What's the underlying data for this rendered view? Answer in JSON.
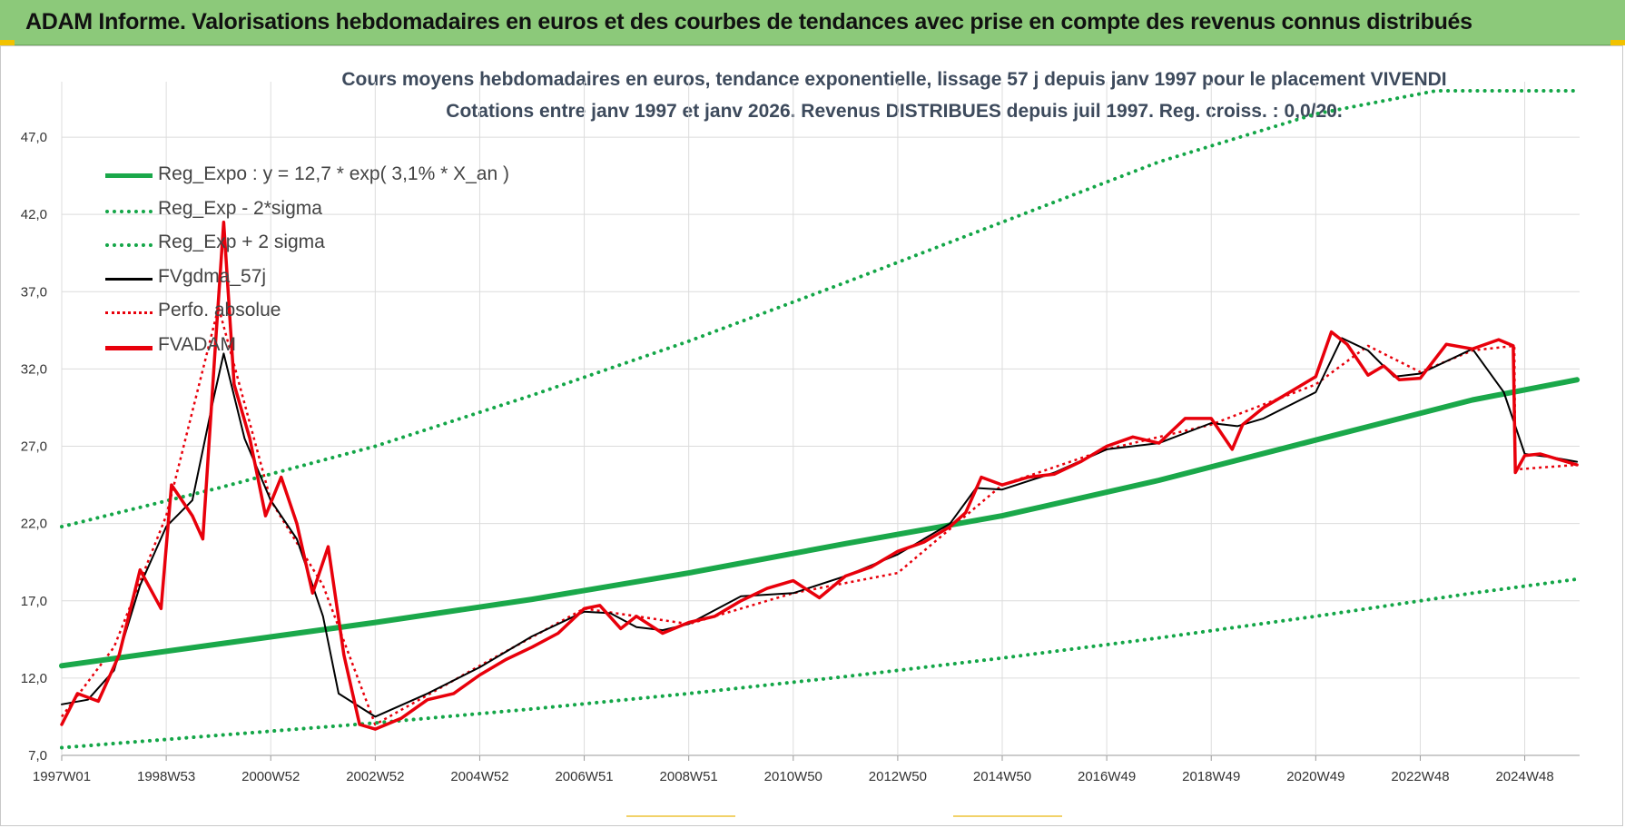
{
  "header": {
    "title": "ADAM Informe. Valorisations hebdomadaires en euros et des courbes de tendances avec prise en compte des revenus connus distribués"
  },
  "colors": {
    "header_bg": "#8cc97a",
    "green": "#1aa84a",
    "dotted_green": "#14a648",
    "black": "#000000",
    "red": "#e8000b"
  },
  "chart_data": {
    "type": "line",
    "title": "Cours moyens hebdomadaires en euros, tendance exponentielle, lissage 57 j depuis janv 1997 pour le placement VIVENDI",
    "subtitle": "Cotations entre janv 1997 et janv 2026. Revenus DISTRIBUES depuis juil 1997. Reg.  croiss. : 0,0/20.",
    "xlabel": "",
    "ylabel": "",
    "x_range": [
      1997.0,
      2026.05
    ],
    "ylim": [
      7.0,
      50.0
    ],
    "y_ticks": [
      "7,0",
      "12,0",
      "17,0",
      "22,0",
      "27,0",
      "32,0",
      "37,0",
      "42,0",
      "47,0"
    ],
    "y_tick_values": [
      7,
      12,
      17,
      22,
      27,
      32,
      37,
      42,
      47
    ],
    "x_tick_labels": [
      "1997W01",
      "1998W53",
      "2000W52",
      "2002W52",
      "2004W52",
      "2006W51",
      "2008W51",
      "2010W50",
      "2012W50",
      "2014W50",
      "2016W49",
      "2018W49",
      "2020W49",
      "2022W48",
      "2024W48"
    ],
    "x_tick_years": [
      1997,
      1999,
      2001,
      2003,
      2005,
      2007,
      2009,
      2011,
      2013,
      2015,
      2017,
      2019,
      2021,
      2023,
      2025
    ],
    "grid": true,
    "legend_position": "top-left",
    "series": [
      {
        "name": "Reg_Expo : y = 12,7 * exp( 3,1% *  X_an )",
        "style": "solid-thick",
        "color": "#1aa84a",
        "x": [
          1997,
          2000,
          2003,
          2006,
          2009,
          2012,
          2015,
          2018,
          2021,
          2024,
          2026
        ],
        "y": [
          12.8,
          14.2,
          15.6,
          17.1,
          18.8,
          20.7,
          22.5,
          24.8,
          27.4,
          30.0,
          31.3
        ]
      },
      {
        "name": "Reg_Exp - 2*sigma",
        "style": "dotted",
        "color": "#14a648",
        "x": [
          1997,
          2000,
          2003,
          2006,
          2009,
          2012,
          2015,
          2018,
          2021,
          2024,
          2026
        ],
        "y": [
          7.5,
          8.3,
          9.1,
          10.0,
          11.0,
          12.1,
          13.3,
          14.6,
          16.0,
          17.5,
          18.4
        ]
      },
      {
        "name": "Reg_Exp + 2 sigma",
        "style": "dotted",
        "color": "#14a648",
        "x": [
          1997,
          2000,
          2003,
          2006,
          2009,
          2012,
          2015,
          2018,
          2021,
          2023.3,
          2026
        ],
        "y": [
          21.8,
          24.3,
          27.0,
          30.3,
          33.8,
          37.6,
          41.5,
          45.4,
          48.5,
          50.0,
          50.0
        ]
      },
      {
        "name": "FVgdma_57j",
        "style": "solid",
        "color": "#000000",
        "x": [
          1997,
          1997.5,
          1998,
          1998.5,
          1999,
          1999.5,
          1999.9,
          2000.1,
          2000.5,
          2001,
          2001.5,
          2002,
          2002.3,
          2003,
          2004,
          2005,
          2006,
          2007,
          2007.5,
          2008,
          2008.5,
          2009,
          2010,
          2011,
          2012,
          2013,
          2014,
          2014.5,
          2015,
          2016,
          2017,
          2018,
          2019,
          2019.5,
          2020,
          2021,
          2021.5,
          2022,
          2022.5,
          2023,
          2024,
          2024.6,
          2025,
          2025.5,
          2026
        ],
        "y": [
          10.3,
          10.6,
          12.5,
          18.0,
          21.8,
          23.5,
          30.0,
          33.0,
          27.5,
          23.5,
          21.0,
          16.0,
          11.0,
          9.5,
          11.0,
          12.7,
          14.7,
          16.3,
          16.2,
          15.3,
          15.1,
          15.5,
          17.3,
          17.5,
          18.6,
          20.0,
          22.0,
          24.3,
          24.2,
          25.3,
          26.8,
          27.2,
          28.5,
          28.3,
          28.8,
          30.5,
          34.0,
          33.2,
          31.5,
          31.7,
          33.3,
          30.5,
          26.5,
          26.3,
          26.0
        ]
      },
      {
        "name": "Perfo. absolue",
        "style": "dotted",
        "color": "#e8000b",
        "x": [
          1997,
          1998,
          1999,
          2000,
          2001,
          2002,
          2003,
          2005,
          2007,
          2009,
          2011,
          2013,
          2015,
          2017,
          2019,
          2021,
          2022,
          2023,
          2024,
          2024.8,
          2024.82,
          2026
        ],
        "y": [
          9.5,
          14.0,
          22.5,
          36.0,
          23.5,
          18.0,
          9.0,
          12.8,
          16.5,
          15.5,
          17.5,
          18.8,
          24.5,
          26.8,
          28.4,
          31.0,
          33.5,
          31.8,
          33.2,
          33.5,
          25.5,
          25.8
        ]
      },
      {
        "name": "FVADAM",
        "style": "solid-thick",
        "color": "#e8000b",
        "x": [
          1997,
          1997.3,
          1997.7,
          1998.1,
          1998.5,
          1998.9,
          1999.1,
          1999.5,
          1999.7,
          1999.95,
          2000.1,
          2000.3,
          2000.6,
          2000.9,
          2001.2,
          2001.5,
          2001.8,
          2002.1,
          2002.4,
          2002.7,
          2003.0,
          2003.5,
          2004,
          2004.5,
          2005,
          2005.5,
          2006,
          2006.5,
          2007,
          2007.3,
          2007.7,
          2008,
          2008.5,
          2009,
          2009.5,
          2010,
          2010.5,
          2011,
          2011.5,
          2012,
          2012.5,
          2013,
          2013.5,
          2014,
          2014.3,
          2014.6,
          2015,
          2015.5,
          2016,
          2016.5,
          2017,
          2017.5,
          2018,
          2018.5,
          2019,
          2019.4,
          2019.6,
          2020,
          2020.5,
          2021,
          2021.3,
          2021.6,
          2022,
          2022.3,
          2022.6,
          2023,
          2023.5,
          2024,
          2024.5,
          2024.78,
          2024.82,
          2025,
          2025.3,
          2025.6,
          2026
        ],
        "y": [
          9.0,
          11.0,
          10.5,
          13.5,
          19.0,
          16.5,
          24.5,
          22.5,
          21.0,
          34.0,
          41.5,
          31.0,
          27.5,
          22.5,
          25.0,
          22.0,
          17.5,
          20.5,
          13.5,
          9.0,
          8.7,
          9.4,
          10.6,
          11.0,
          12.2,
          13.2,
          14.0,
          14.9,
          16.5,
          16.7,
          15.2,
          16.0,
          14.9,
          15.6,
          16.0,
          17.0,
          17.8,
          18.3,
          17.2,
          18.6,
          19.2,
          20.2,
          20.8,
          21.8,
          22.7,
          25.0,
          24.5,
          25.0,
          25.2,
          26.0,
          27.0,
          27.6,
          27.2,
          28.8,
          28.8,
          26.8,
          28.4,
          29.5,
          30.5,
          31.5,
          34.4,
          33.6,
          31.6,
          32.2,
          31.3,
          31.4,
          33.6,
          33.3,
          33.9,
          33.5,
          25.3,
          26.4,
          26.5,
          26.2,
          25.8
        ]
      }
    ]
  }
}
